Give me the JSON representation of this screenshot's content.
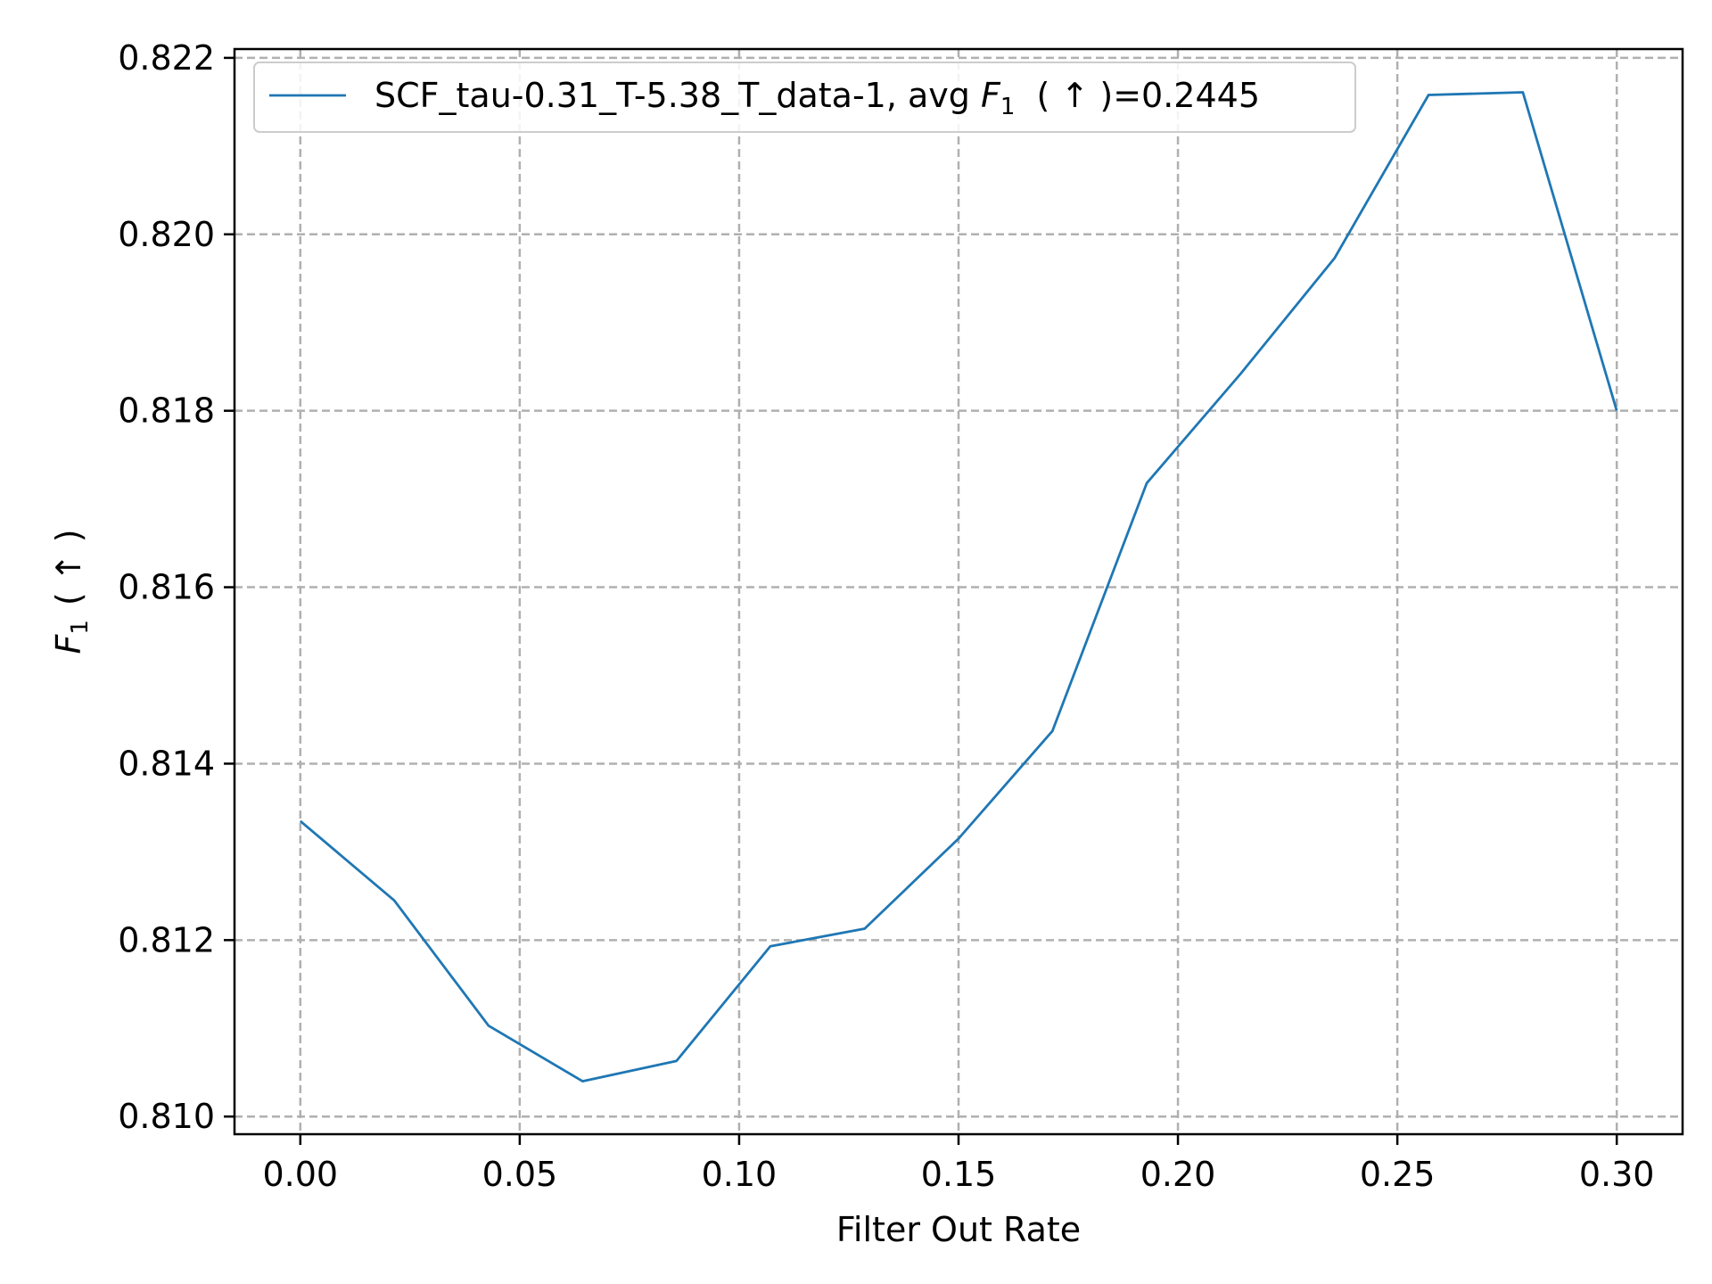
{
  "chart_data": {
    "type": "line",
    "title": "",
    "xlabel": "Filter Out Rate",
    "ylabel": {
      "symbol": "F",
      "subscript": "1",
      "suffix": "( ↑ )"
    },
    "xlim": [
      -0.015,
      0.315
    ],
    "ylim": [
      0.8098,
      0.8221
    ],
    "xticks": [
      0.0,
      0.05,
      0.1,
      0.15,
      0.2,
      0.25,
      0.3
    ],
    "xtick_labels": [
      "0.00",
      "0.05",
      "0.10",
      "0.15",
      "0.20",
      "0.25",
      "0.30"
    ],
    "yticks": [
      0.81,
      0.812,
      0.814,
      0.816,
      0.818,
      0.82,
      0.822
    ],
    "ytick_labels": [
      "0.810",
      "0.812",
      "0.814",
      "0.816",
      "0.818",
      "0.820",
      "0.822"
    ],
    "grid": true,
    "legend_position": "top-left",
    "series": [
      {
        "name": "SCF_tau-0.31_T-5.38_T_data-1, avg F1 ( ↑ )=0.2445",
        "legend": {
          "prefix": "SCF_tau-0.31_T-5.38_T_data-1, avg ",
          "symbol": "F",
          "subscript": "1",
          "suffix": "  ( ↑ )=0.2445"
        },
        "color": "#1f77b4",
        "x": [
          0.0,
          0.0214,
          0.0429,
          0.0643,
          0.0857,
          0.1071,
          0.1286,
          0.15,
          0.1714,
          0.1929,
          0.2143,
          0.2357,
          0.2571,
          0.2786,
          0.3
        ],
        "y": [
          0.81335,
          0.81245,
          0.81103,
          0.8104,
          0.81063,
          0.81193,
          0.81213,
          0.81315,
          0.81437,
          0.81718,
          0.81842,
          0.81973,
          0.82158,
          0.82161,
          0.818
        ]
      }
    ]
  }
}
